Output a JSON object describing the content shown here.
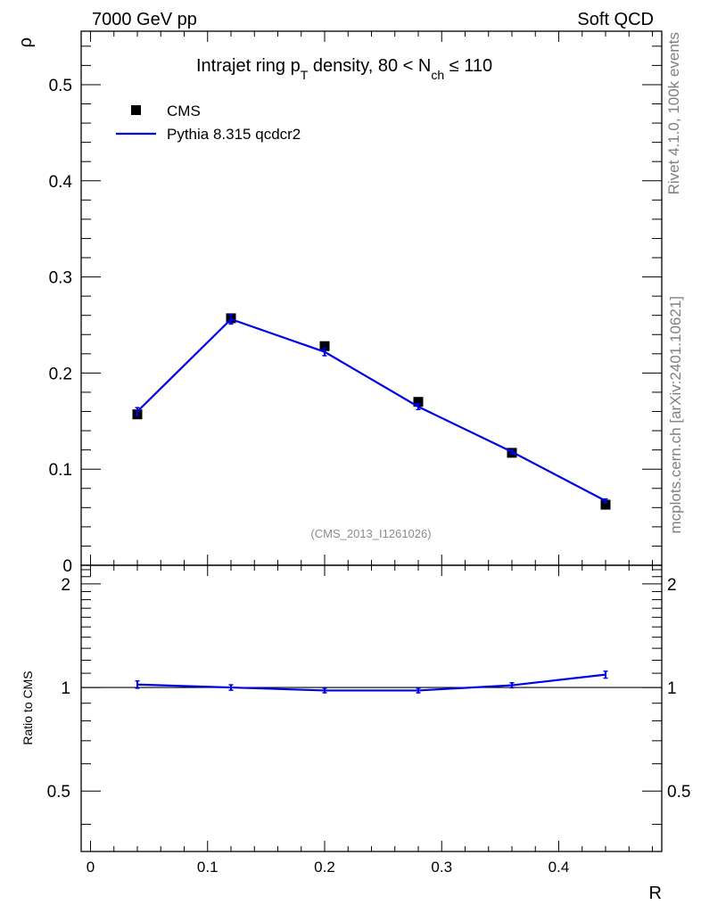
{
  "header": {
    "left": "7000 GeV pp",
    "right": "Soft QCD"
  },
  "side_text": {
    "rivet": "Rivet 4.1.0,  100k events",
    "mcplots": "mcplots.cern.ch [arXiv:2401.10621]"
  },
  "reference": "(CMS_2013_I1261026)",
  "title": {
    "prefix": "Intrajet ring p",
    "sub1": "T",
    "middle": " density, 80 < N",
    "sub2": "ch",
    "suffix": " ≤ 110"
  },
  "legend": {
    "data": "CMS",
    "mc": "Pythia 8.315 qcdcr2"
  },
  "colors": {
    "mc": "#0000e6",
    "data": "#000000",
    "refline": "#000000"
  },
  "chart_data": [
    {
      "type": "line",
      "panel": "main",
      "xlabel": "R",
      "ylabel": "ρ",
      "xlim": [
        -0.008,
        0.488
      ],
      "ylim": [
        0,
        0.5556
      ],
      "xticks": [
        0,
        0.1,
        0.2,
        0.3,
        0.4
      ],
      "xtick_labels": [
        "0",
        "0.1",
        "0.2",
        "0.3",
        "0.4"
      ],
      "yticks": [
        0,
        0.1,
        0.2,
        0.3,
        0.4,
        0.5
      ],
      "ytick_labels": [
        "0",
        "0.1",
        "0.2",
        "0.3",
        "0.4",
        "0.5"
      ],
      "series": [
        {
          "name": "CMS",
          "style": "markers",
          "x": [
            0.04,
            0.12,
            0.2,
            0.28,
            0.36,
            0.44
          ],
          "y": [
            0.157,
            0.257,
            0.228,
            0.17,
            0.117,
            0.063
          ]
        },
        {
          "name": "Pythia 8.315 qcdcr2",
          "style": "line",
          "x": [
            0.04,
            0.12,
            0.2,
            0.28,
            0.36,
            0.44
          ],
          "y": [
            0.16,
            0.256,
            0.222,
            0.165,
            0.118,
            0.067
          ],
          "err": [
            0.004,
            0.005,
            0.004,
            0.003,
            0.002,
            0.002
          ]
        }
      ]
    },
    {
      "type": "line",
      "panel": "ratio",
      "xlabel": "R",
      "ylabel": "Ratio to CMS",
      "xlim": [
        -0.008,
        0.488
      ],
      "ylim": [
        0.3336,
        2.2662
      ],
      "xticks": [
        0,
        0.1,
        0.2,
        0.3,
        0.4
      ],
      "xtick_labels": [
        "0",
        "0.1",
        "0.2",
        "0.3",
        "0.4"
      ],
      "yticks": [
        0.5,
        1,
        2
      ],
      "ytick_labels": [
        "0.5",
        "1",
        "2"
      ],
      "reference_line": 1,
      "series": [
        {
          "name": "Pythia 8.315 qcdcr2 / CMS",
          "x": [
            0.04,
            0.12,
            0.2,
            0.28,
            0.36,
            0.44
          ],
          "y": [
            1.02,
            1.0,
            0.98,
            0.98,
            1.015,
            1.09
          ],
          "err": [
            0.025,
            0.018,
            0.015,
            0.015,
            0.017,
            0.025
          ]
        }
      ]
    }
  ]
}
